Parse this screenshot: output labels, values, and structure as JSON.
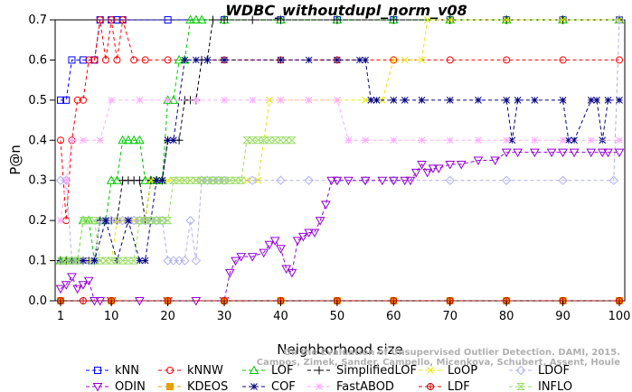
{
  "chart_data": {
    "type": "line",
    "title": "WDBC_withoutdupl_norm_v08",
    "xlabel": "Neighborhood size",
    "ylabel": "P@n",
    "xlim": [
      1,
      100
    ],
    "ylim": [
      0,
      0.7
    ],
    "x_ticks": [
      1,
      10,
      20,
      30,
      40,
      50,
      60,
      70,
      80,
      90,
      100
    ],
    "y_ticks": [
      0.0,
      0.1,
      0.2,
      0.3,
      0.4,
      0.5,
      0.6,
      0.7
    ],
    "y_tick_labels": [
      "0.0",
      "0.1",
      "0.2",
      "0.3",
      "0.4",
      "0.5",
      "0.6",
      "0.7"
    ],
    "legend_position": "bottom",
    "watermark": [
      "Campos, Zimek, Sander, Campello, Micenkova, Schubert, Assent, Houle",
      "On the Evaluation of Unsupervised Outlier Detection. DAMI, 2015."
    ],
    "series": [
      {
        "name": "kNN",
        "color": "#0000ff",
        "marker": "square",
        "x": [
          1,
          2,
          3,
          5,
          7,
          8,
          10,
          11,
          12,
          20,
          30,
          40,
          50,
          60,
          70,
          80,
          90,
          100
        ],
        "y": [
          0.5,
          0.5,
          0.6,
          0.6,
          0.6,
          0.7,
          0.7,
          0.7,
          0.7,
          0.7,
          0.7,
          0.7,
          0.7,
          0.7,
          0.7,
          0.7,
          0.7,
          0.7
        ]
      },
      {
        "name": "kNNW",
        "color": "#ff0000",
        "marker": "circle",
        "x": [
          1,
          2,
          3,
          4,
          5,
          6,
          7,
          8,
          9,
          10,
          11,
          12,
          14,
          16,
          20,
          30,
          40,
          50,
          60,
          70,
          80,
          90,
          100
        ],
        "y": [
          0.4,
          0.2,
          0.4,
          0.5,
          0.5,
          0.6,
          0.6,
          0.7,
          0.6,
          0.7,
          0.6,
          0.7,
          0.6,
          0.6,
          0.6,
          0.6,
          0.6,
          0.6,
          0.6,
          0.6,
          0.6,
          0.6,
          0.6
        ]
      },
      {
        "name": "LOF",
        "color": "#00cc00",
        "marker": "triangle",
        "x": [
          1,
          2,
          3,
          4,
          5,
          6,
          7,
          8,
          9,
          10,
          11,
          12,
          13,
          14,
          15,
          16,
          17,
          18,
          19,
          20,
          21,
          22,
          23,
          24,
          25,
          26,
          30,
          40,
          50,
          60,
          70,
          80,
          90,
          100
        ],
        "y": [
          0.1,
          0.1,
          0.1,
          0.1,
          0.2,
          0.2,
          0.1,
          0.2,
          0.2,
          0.3,
          0.3,
          0.4,
          0.4,
          0.4,
          0.4,
          0.3,
          0.3,
          0.3,
          0.3,
          0.5,
          0.5,
          0.6,
          0.6,
          0.7,
          0.7,
          0.7,
          0.7,
          0.7,
          0.7,
          0.7,
          0.7,
          0.7,
          0.7,
          0.7
        ]
      },
      {
        "name": "SimplifiedLOF",
        "color": "#000000",
        "marker": "plus",
        "x": [
          1,
          2,
          3,
          4,
          5,
          6,
          7,
          8,
          9,
          10,
          11,
          12,
          13,
          14,
          15,
          16,
          17,
          18,
          19,
          20,
          22,
          23,
          24,
          25,
          26,
          27,
          28,
          30,
          35,
          40,
          50,
          60,
          70,
          80,
          90,
          100
        ],
        "y": [
          0.1,
          0.1,
          0.1,
          0.1,
          0.1,
          0.1,
          0.1,
          0.2,
          0.2,
          0.2,
          0.2,
          0.3,
          0.3,
          0.3,
          0.3,
          0.2,
          0.3,
          0.3,
          0.3,
          0.4,
          0.4,
          0.5,
          0.5,
          0.5,
          0.6,
          0.6,
          0.7,
          0.7,
          0.7,
          0.7,
          0.7,
          0.7,
          0.7,
          0.7,
          0.7,
          0.7
        ]
      },
      {
        "name": "LoOP",
        "color": "#e6e600",
        "marker": "cross",
        "x": [
          1,
          2,
          3,
          4,
          5,
          6,
          7,
          8,
          9,
          10,
          11,
          12,
          13,
          14,
          15,
          16,
          17,
          18,
          19,
          20,
          21,
          22,
          23,
          24,
          25,
          26,
          28,
          30,
          32,
          34,
          36,
          38,
          40,
          45,
          50,
          55,
          58,
          60,
          62,
          65,
          66,
          70,
          80,
          90,
          100
        ],
        "y": [
          0.1,
          0.1,
          0.1,
          0.1,
          0.1,
          0.1,
          0.1,
          0.1,
          0.1,
          0.1,
          0.2,
          0.2,
          0.2,
          0.2,
          0.2,
          0.2,
          0.3,
          0.3,
          0.3,
          0.3,
          0.3,
          0.3,
          0.3,
          0.3,
          0.3,
          0.3,
          0.3,
          0.3,
          0.3,
          0.3,
          0.3,
          0.5,
          0.5,
          0.5,
          0.5,
          0.5,
          0.5,
          0.6,
          0.6,
          0.6,
          0.7,
          0.7,
          0.7,
          0.7,
          0.7
        ]
      },
      {
        "name": "LDOF",
        "color": "#b0b0f0",
        "marker": "diamond",
        "x": [
          1,
          2,
          3,
          4,
          5,
          6,
          7,
          8,
          9,
          10,
          11,
          12,
          13,
          14,
          15,
          16,
          17,
          18,
          19,
          20,
          21,
          22,
          23,
          24,
          25,
          26,
          27,
          28,
          29,
          30,
          35,
          40,
          45,
          50,
          55,
          60,
          70,
          80,
          90,
          99,
          100
        ],
        "y": [
          0.3,
          0.3,
          0.1,
          0.1,
          0.1,
          0.1,
          0.1,
          0.2,
          0.2,
          0.2,
          0.2,
          0.2,
          0.2,
          0.2,
          0.2,
          0.2,
          0.2,
          0.2,
          0.2,
          0.1,
          0.1,
          0.1,
          0.1,
          0.2,
          0.1,
          0.3,
          0.3,
          0.3,
          0.3,
          0.3,
          0.3,
          0.3,
          0.3,
          0.3,
          0.3,
          0.3,
          0.3,
          0.3,
          0.3,
          0.3,
          0.7
        ]
      },
      {
        "name": "ODIN",
        "color": "#9400d3",
        "marker": "triangle-down",
        "x": [
          1,
          2,
          3,
          4,
          5,
          6,
          7,
          8,
          10,
          15,
          20,
          25,
          30,
          31,
          32,
          33,
          35,
          37,
          38,
          39,
          40,
          41,
          42,
          43,
          44,
          45,
          46,
          47,
          48,
          49,
          50,
          52,
          55,
          58,
          60,
          62,
          63,
          64,
          65,
          66,
          67,
          68,
          70,
          72,
          75,
          78,
          80,
          82,
          85,
          88,
          90,
          92,
          95,
          97,
          98,
          100
        ],
        "y": [
          0.03,
          0.04,
          0.06,
          0.03,
          0.04,
          0.05,
          0.0,
          0.0,
          0.0,
          0.0,
          0.0,
          0.0,
          0.0,
          0.07,
          0.1,
          0.11,
          0.11,
          0.12,
          0.14,
          0.15,
          0.13,
          0.08,
          0.07,
          0.15,
          0.16,
          0.17,
          0.17,
          0.2,
          0.24,
          0.3,
          0.3,
          0.3,
          0.3,
          0.3,
          0.3,
          0.3,
          0.3,
          0.32,
          0.34,
          0.32,
          0.33,
          0.33,
          0.34,
          0.34,
          0.35,
          0.35,
          0.37,
          0.37,
          0.37,
          0.37,
          0.37,
          0.37,
          0.37,
          0.37,
          0.37,
          0.37
        ]
      },
      {
        "name": "KDEOS",
        "color": "#e6a000",
        "marker": "square-filled",
        "x": [
          1,
          10,
          20,
          30,
          40,
          50,
          60,
          70,
          80,
          90,
          100
        ],
        "y": [
          0.0,
          0.0,
          0.0,
          0.0,
          0.0,
          0.0,
          0.0,
          0.0,
          0.0,
          0.0,
          0.0
        ]
      },
      {
        "name": "COF",
        "color": "#000080",
        "marker": "star",
        "x": [
          1,
          3,
          5,
          7,
          9,
          11,
          13,
          15,
          16,
          18,
          19,
          20,
          21,
          23,
          25,
          27,
          30,
          40,
          45,
          50,
          54,
          55,
          56,
          57,
          60,
          62,
          65,
          70,
          75,
          80,
          81,
          82,
          85,
          90,
          91,
          92,
          95,
          96,
          97,
          98,
          100
        ],
        "y": [
          0.1,
          0.1,
          0.1,
          0.1,
          0.2,
          0.1,
          0.2,
          0.1,
          0.1,
          0.3,
          0.3,
          0.4,
          0.4,
          0.6,
          0.6,
          0.6,
          0.6,
          0.6,
          0.6,
          0.6,
          0.6,
          0.6,
          0.5,
          0.5,
          0.5,
          0.5,
          0.5,
          0.5,
          0.5,
          0.5,
          0.4,
          0.5,
          0.5,
          0.5,
          0.4,
          0.4,
          0.5,
          0.5,
          0.4,
          0.5,
          0.5
        ]
      },
      {
        "name": "FastABOD",
        "color": "#ffaaff",
        "marker": "star-outline",
        "x": [
          1,
          2,
          3,
          5,
          8,
          10,
          15,
          20,
          25,
          30,
          35,
          40,
          45,
          50,
          52,
          55,
          60,
          65,
          70,
          75,
          80,
          85,
          90,
          95,
          100
        ],
        "y": [
          0.2,
          0.3,
          0.4,
          0.4,
          0.4,
          0.5,
          0.5,
          0.5,
          0.5,
          0.5,
          0.5,
          0.5,
          0.5,
          0.5,
          0.4,
          0.4,
          0.4,
          0.4,
          0.4,
          0.4,
          0.4,
          0.4,
          0.4,
          0.4,
          0.4
        ]
      },
      {
        "name": "LDF",
        "color": "#cc0000",
        "marker": "circle-plus",
        "x": [
          1,
          5,
          10,
          20,
          30,
          40,
          50,
          60,
          70,
          80,
          90,
          100
        ],
        "y": [
          0.0,
          0.0,
          0.0,
          0.0,
          0.0,
          0.0,
          0.0,
          0.0,
          0.0,
          0.0,
          0.0,
          0.0
        ]
      },
      {
        "name": "INFLO",
        "color": "#99dd66",
        "marker": "hourglass",
        "x": [
          1,
          2,
          3,
          4,
          5,
          6,
          7,
          8,
          9,
          10,
          11,
          12,
          13,
          14,
          15,
          16,
          17,
          18,
          19,
          20,
          21,
          22,
          23,
          24,
          25,
          26,
          27,
          28,
          29,
          30,
          31,
          32,
          33,
          34,
          35,
          36,
          37,
          38,
          39,
          40,
          41,
          42
        ],
        "y": [
          0.1,
          0.1,
          0.1,
          0.1,
          0.2,
          0.2,
          0.2,
          0.1,
          0.1,
          0.1,
          0.1,
          0.1,
          0.1,
          0.1,
          0.2,
          0.2,
          0.2,
          0.2,
          0.2,
          0.2,
          0.3,
          0.3,
          0.3,
          0.3,
          0.3,
          0.3,
          0.3,
          0.3,
          0.3,
          0.3,
          0.3,
          0.3,
          0.3,
          0.4,
          0.4,
          0.4,
          0.4,
          0.4,
          0.4,
          0.4,
          0.4,
          0.4
        ]
      }
    ],
    "legend_rows": [
      [
        "kNN",
        "kNNW",
        "LOF",
        "SimplifiedLOF",
        "LoOP",
        "LDOF"
      ],
      [
        "ODIN",
        "KDEOS",
        "COF",
        "FastABOD",
        "LDF",
        "INFLO"
      ]
    ]
  }
}
